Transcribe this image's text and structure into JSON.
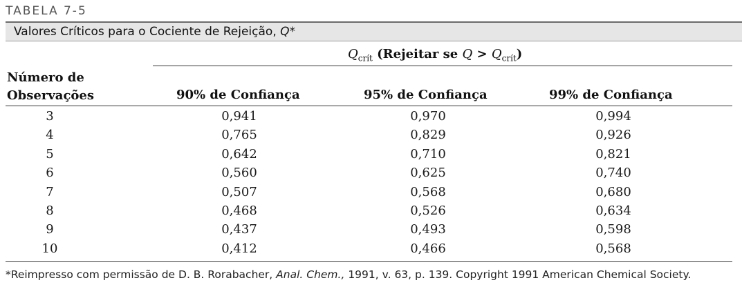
{
  "table_label": "TABELA 7-5",
  "title": {
    "text": "Valores Críticos para o Cociente de Rejeição, ",
    "italic": "Q",
    "star": "*"
  },
  "group_heading": {
    "q": "Q",
    "sub": "crít",
    "middle": " (Rejeitar se ",
    "q2": "Q",
    "gt": " > ",
    "q3": "Q",
    "sub2": "crít",
    "end": ")"
  },
  "columns": {
    "observations_line1": "Número de",
    "observations_line2": "Observações",
    "c90": "90% de Confiança",
    "c95": "95% de Confiança",
    "c99": "99% de Confiança"
  },
  "rows": [
    {
      "n": "3",
      "c90": "0,941",
      "c95": "0,970",
      "c99": "0,994"
    },
    {
      "n": "4",
      "c90": "0,765",
      "c95": "0,829",
      "c99": "0,926"
    },
    {
      "n": "5",
      "c90": "0,642",
      "c95": "0,710",
      "c99": "0,821"
    },
    {
      "n": "6",
      "c90": "0,560",
      "c95": "0,625",
      "c99": "0,740"
    },
    {
      "n": "7",
      "c90": "0,507",
      "c95": "0,568",
      "c99": "0,680"
    },
    {
      "n": "8",
      "c90": "0,468",
      "c95": "0,526",
      "c99": "0,634"
    },
    {
      "n": "9",
      "c90": "0,437",
      "c95": "0,493",
      "c99": "0,598"
    },
    {
      "n": "10",
      "c90": "0,412",
      "c95": "0,466",
      "c99": "0,568"
    }
  ],
  "footnote": {
    "before": "*Reimpresso com permissão de D. B. Rorabacher, ",
    "journal": "Anal. Chem.,",
    "after": " 1991, v. 63, p. 139. Copyright 1991 American Chemical Society."
  }
}
